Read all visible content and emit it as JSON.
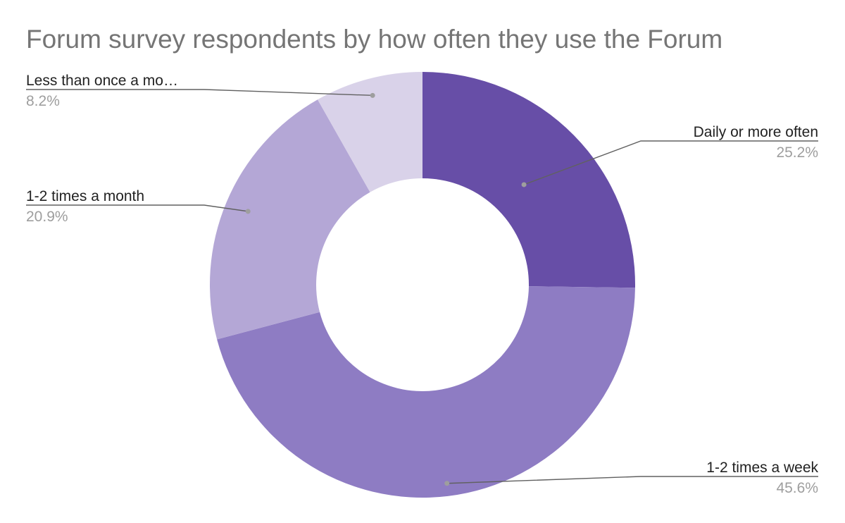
{
  "chart_data": {
    "type": "pie",
    "variant": "donut",
    "title": "Forum survey respondents by how often they use the Forum",
    "categories": [
      "Daily or more often",
      "1-2 times a week",
      "1-2 times a month",
      "Less than once a mo…"
    ],
    "values": [
      25.2,
      45.6,
      20.9,
      8.2
    ],
    "value_labels": [
      "25.2%",
      "45.6%",
      "20.9%",
      "8.2%"
    ],
    "colors": [
      "#674ea7",
      "#8e7cc3",
      "#b4a7d6",
      "#d9d2e9"
    ],
    "legend": "none",
    "label_style": "outside leader lines"
  }
}
